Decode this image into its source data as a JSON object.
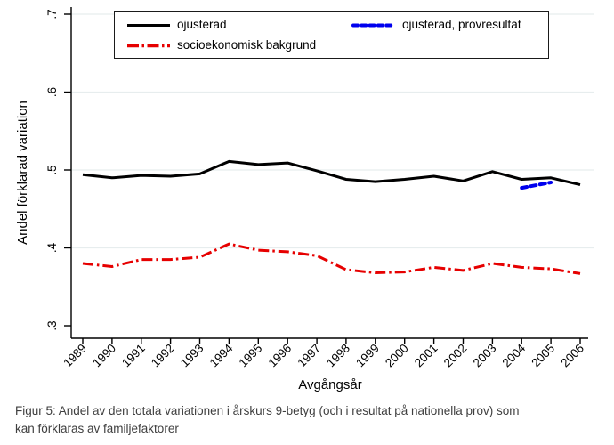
{
  "figure": {
    "caption_lines": [
      "Figur 5: Andel av den totala variationen i årskurs 9-betyg (och i resultat på nationella prov) som",
      "kan förklaras av familjefaktorer"
    ]
  },
  "colors": {
    "axis": "#000000",
    "grid": "#e7edee",
    "caption_text": "#3f3f3f",
    "black_series": "#000000",
    "blue_series": "#0000ee",
    "red_series": "#e60000"
  },
  "chart_data": {
    "type": "line",
    "title": "",
    "xlabel": "Avgångsår",
    "ylabel": "Andel förklarad variation",
    "x": [
      1989,
      1990,
      1991,
      1992,
      1993,
      1994,
      1995,
      1996,
      1997,
      1998,
      1999,
      2000,
      2001,
      2002,
      2003,
      2004,
      2005,
      2006
    ],
    "xlim": [
      1988.6,
      2006.3
    ],
    "ylim": [
      0.3,
      0.7
    ],
    "yticks": [
      0.3,
      0.4,
      0.5,
      0.6,
      0.7
    ],
    "ytick_labels": [
      ".3",
      ".4",
      ".5",
      ".6",
      ".7"
    ],
    "grid": true,
    "legend_position": "top-inside",
    "series": [
      {
        "name": "ojusterad",
        "color": "#000000",
        "style": "solid",
        "width": 3,
        "x": [
          1989,
          1990,
          1991,
          1992,
          1993,
          1994,
          1995,
          1996,
          1997,
          1998,
          1999,
          2000,
          2001,
          2002,
          2003,
          2004,
          2005,
          2006
        ],
        "values": [
          0.494,
          0.49,
          0.493,
          0.492,
          0.495,
          0.511,
          0.507,
          0.509,
          0.499,
          0.488,
          0.485,
          0.488,
          0.492,
          0.486,
          0.498,
          0.488,
          0.49,
          0.481
        ]
      },
      {
        "name": "ojusterad, provresultat",
        "color": "#0000ee",
        "style": "dashed",
        "width": 4,
        "x": [
          2004,
          2005
        ],
        "values": [
          0.477,
          0.484
        ]
      },
      {
        "name": "socioekonomisk bakgrund",
        "color": "#e60000",
        "style": "dash-dot",
        "width": 3,
        "x": [
          1989,
          1990,
          1991,
          1992,
          1993,
          1994,
          1995,
          1996,
          1997,
          1998,
          1999,
          2000,
          2001,
          2002,
          2003,
          2004,
          2005,
          2006
        ],
        "values": [
          0.38,
          0.376,
          0.385,
          0.385,
          0.388,
          0.405,
          0.397,
          0.395,
          0.39,
          0.372,
          0.368,
          0.369,
          0.375,
          0.371,
          0.38,
          0.375,
          0.373,
          0.367
        ]
      }
    ]
  }
}
